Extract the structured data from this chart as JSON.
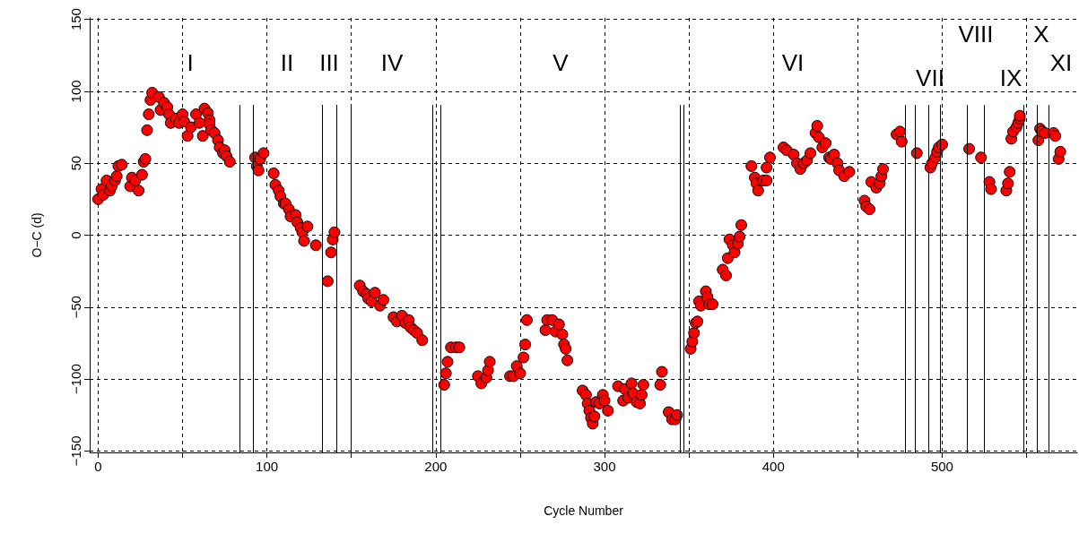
{
  "chart_data": {
    "type": "scatter",
    "xlabel": "Cycle Number",
    "ylabel": "O−C (d)",
    "xlim": [
      -5,
      580
    ],
    "ylim": [
      -151,
      151
    ],
    "xticks": [
      0,
      {
        "value": 50,
        "label": null
      },
      100,
      {
        "value": 150,
        "label": null
      },
      200,
      {
        "value": 250,
        "label": null
      },
      300,
      {
        "value": 350,
        "label": null
      },
      400,
      {
        "value": 450,
        "label": null
      },
      500,
      {
        "value": 550,
        "label": null
      }
    ],
    "yticks": [
      -150,
      -100,
      -50,
      0,
      50,
      100,
      150
    ],
    "grid": true,
    "marker": "circle",
    "series": [
      {
        "color": "#ff0000",
        "x": [
          0,
          2,
          3,
          5,
          7,
          8,
          10,
          11,
          12,
          14,
          19,
          20,
          22,
          24,
          26,
          27,
          28,
          29,
          30,
          31,
          32,
          36,
          37,
          39,
          41,
          42,
          43,
          46,
          48,
          50,
          51,
          53,
          55,
          58,
          60,
          62,
          63,
          65,
          66,
          66,
          67,
          69,
          71,
          72,
          74,
          75,
          76,
          78,
          93,
          94,
          95,
          96,
          98,
          104,
          105,
          107,
          108,
          110,
          111,
          113,
          114,
          117,
          118,
          120,
          121,
          122,
          124,
          129,
          136,
          138,
          139,
          140,
          155,
          157,
          159,
          160,
          162,
          164,
          167,
          169,
          175,
          177,
          180,
          182,
          184,
          185,
          187,
          189,
          192,
          205,
          206,
          207,
          209,
          212,
          214,
          225,
          227,
          230,
          231,
          232,
          244,
          246,
          248,
          250,
          252,
          253,
          254,
          265,
          266,
          269,
          271,
          273,
          275,
          276,
          277,
          278,
          287,
          289,
          290,
          291,
          292,
          293,
          294,
          295,
          297,
          299,
          300,
          302,
          308,
          311,
          312,
          314,
          316,
          317,
          319,
          321,
          322,
          323,
          333,
          334,
          338,
          340,
          342,
          343,
          351,
          352,
          353,
          354,
          355,
          356,
          357,
          360,
          361,
          362,
          364,
          370,
          372,
          373,
          374,
          376,
          377,
          379,
          380,
          381,
          387,
          389,
          390,
          391,
          394,
          396,
          396,
          398,
          406,
          408,
          412,
          414,
          416,
          418,
          420,
          422,
          425,
          426,
          427,
          429,
          431,
          433,
          434,
          436,
          438,
          439,
          442,
          445,
          454,
          455,
          457,
          458,
          461,
          463,
          464,
          465,
          473,
          475,
          476,
          485,
          493,
          494,
          496,
          497,
          498,
          500,
          516,
          523,
          528,
          529,
          538,
          539,
          540,
          541,
          542,
          544,
          545,
          546,
          546,
          557,
          558,
          559,
          561,
          566,
          567,
          569,
          570
        ],
        "values": [
          25,
          32,
          28,
          38,
          31,
          34,
          38,
          41,
          48,
          49,
          34,
          40,
          38,
          31,
          42,
          51,
          53,
          73,
          84,
          94,
          99,
          96,
          87,
          92,
          89,
          84,
          78,
          81,
          78,
          84,
          79,
          69,
          75,
          84,
          78,
          69,
          88,
          85,
          80,
          77,
          73,
          71,
          66,
          61,
          57,
          59,
          55,
          51,
          54,
          48,
          45,
          53,
          57,
          43,
          35,
          31,
          27,
          22,
          22,
          18,
          13,
          14,
          9,
          5,
          2,
          -4,
          6,
          -7,
          -32,
          -12,
          -3,
          2,
          -35,
          -39,
          -41,
          -44,
          -46,
          -40,
          -49,
          -45,
          -57,
          -60,
          -56,
          -61,
          -59,
          -64,
          -66,
          -68,
          -73,
          -104,
          -96,
          -88,
          -78,
          -78,
          -78,
          -98,
          -103,
          -99,
          -94,
          -88,
          -98,
          -98,
          -91,
          -96,
          -85,
          -76,
          -59,
          -66,
          -59,
          -59,
          -67,
          -62,
          -69,
          -76,
          -79,
          -87,
          -108,
          -111,
          -117,
          -122,
          -127,
          -131,
          -126,
          -116,
          -117,
          -111,
          -115,
          -122,
          -105,
          -115,
          -107,
          -113,
          -103,
          -110,
          -116,
          -117,
          -111,
          -104,
          -104,
          -95,
          -123,
          -128,
          -128,
          -125,
          -79,
          -74,
          -68,
          -61,
          -60,
          -46,
          -49,
          -39,
          -43,
          -48,
          -48,
          -24,
          -28,
          -16,
          -3,
          -7,
          -12,
          -6,
          -1,
          7,
          48,
          40,
          36,
          31,
          38,
          38,
          47,
          54,
          61,
          59,
          56,
          50,
          46,
          50,
          52,
          57,
          71,
          76,
          68,
          61,
          64,
          54,
          53,
          56,
          50,
          45,
          41,
          44,
          24,
          20,
          18,
          37,
          33,
          36,
          41,
          46,
          70,
          72,
          65,
          57,
          47,
          50,
          54,
          58,
          61,
          63,
          60,
          54,
          37,
          32,
          31,
          36,
          44,
          67,
          72,
          75,
          78,
          81,
          83,
          66,
          74,
          72,
          71,
          71,
          69,
          53,
          58
        ]
      }
    ],
    "ref_lines": [
      {
        "axis": "x",
        "value": 84
      },
      {
        "axis": "x",
        "value": 92
      },
      {
        "axis": "x",
        "value": 133
      },
      {
        "axis": "x",
        "value": 141
      },
      {
        "axis": "x",
        "value": 150
      },
      {
        "axis": "x",
        "value": 198
      },
      {
        "axis": "x",
        "value": 203
      },
      {
        "axis": "x",
        "value": 345
      },
      {
        "axis": "x",
        "value": 347
      },
      {
        "axis": "x",
        "value": 478
      },
      {
        "axis": "x",
        "value": 484
      },
      {
        "axis": "x",
        "value": 492
      },
      {
        "axis": "x",
        "value": 499
      },
      {
        "axis": "x",
        "value": 515
      },
      {
        "axis": "x",
        "value": 525
      },
      {
        "axis": "x",
        "value": 548
      },
      {
        "axis": "x",
        "value": 556
      },
      {
        "axis": "x",
        "value": 563
      }
    ],
    "annotations": [
      "I",
      "II",
      "III",
      "IV",
      "V",
      "VI",
      "VII",
      "VIII",
      "IX",
      "X",
      "XI"
    ]
  }
}
